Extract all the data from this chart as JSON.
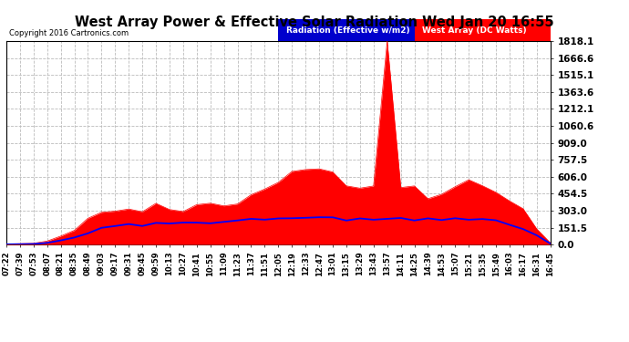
{
  "title": "West Array Power & Effective Solar Radiation Wed Jan 20 16:55",
  "copyright": "Copyright 2016 Cartronics.com",
  "legend_blue": "Radiation (Effective w/m2)",
  "legend_red": "West Array (DC Watts)",
  "y_max": 1818.1,
  "y_ticks": [
    0.0,
    151.5,
    303.0,
    454.5,
    606.0,
    757.5,
    909.0,
    1060.6,
    1212.1,
    1363.6,
    1515.1,
    1666.6,
    1818.1
  ],
  "bg_color": "#ffffff",
  "plot_bg_color": "#ffffff",
  "grid_color": "#bbbbbb",
  "bar_color": "#ff0000",
  "line_color": "#0000ff",
  "x_labels": [
    "07:22",
    "07:39",
    "07:53",
    "08:07",
    "08:21",
    "08:35",
    "08:49",
    "09:03",
    "09:17",
    "09:31",
    "09:45",
    "09:59",
    "10:13",
    "10:27",
    "10:41",
    "10:55",
    "11:09",
    "11:23",
    "11:37",
    "11:51",
    "12:05",
    "12:19",
    "12:33",
    "12:47",
    "13:01",
    "13:15",
    "13:29",
    "13:43",
    "13:57",
    "14:11",
    "14:25",
    "14:39",
    "14:53",
    "15:07",
    "15:21",
    "15:35",
    "15:49",
    "16:03",
    "16:17",
    "16:31",
    "16:45"
  ],
  "power_values": [
    5,
    8,
    12,
    30,
    70,
    130,
    200,
    270,
    300,
    330,
    310,
    340,
    320,
    350,
    370,
    340,
    390,
    410,
    440,
    490,
    530,
    580,
    620,
    650,
    600,
    560,
    530,
    580,
    1818,
    550,
    500,
    480,
    460,
    530,
    580,
    540,
    500,
    400,
    280,
    120,
    20
  ],
  "radiation_values": [
    2,
    3,
    5,
    15,
    35,
    65,
    100,
    140,
    165,
    180,
    175,
    185,
    185,
    195,
    200,
    195,
    205,
    210,
    218,
    222,
    228,
    232,
    235,
    238,
    232,
    228,
    225,
    230,
    240,
    235,
    228,
    222,
    215,
    228,
    238,
    225,
    215,
    185,
    145,
    80,
    10
  ]
}
